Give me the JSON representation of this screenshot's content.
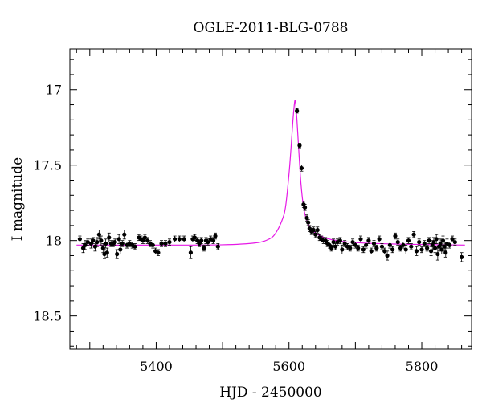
{
  "chart_data": {
    "type": "scatter",
    "title": "OGLE-2011-BLG-0788",
    "xlabel": "HJD - 2450000",
    "ylabel": "I magnitude",
    "xlim": [
      5270,
      5875
    ],
    "ylim": [
      18.72,
      16.73
    ],
    "y_inverted": true,
    "x_ticks": [
      5400,
      5600,
      5800
    ],
    "x_tick_labels": [
      "5400",
      "5600",
      "5800"
    ],
    "y_ticks": [
      17,
      17.5,
      18,
      18.5
    ],
    "y_tick_labels": [
      "17",
      "17.5",
      "18",
      "18.5"
    ],
    "grid": false,
    "legend": "none",
    "colors": {
      "points": "#000000",
      "model": "#e619e6",
      "frame": "#000000"
    },
    "model_curve": {
      "baseline": 18.03,
      "peak_magnitude": 17.07,
      "t0": 5609,
      "x": [
        5280,
        5400,
        5500,
        5550,
        5570,
        5580,
        5590,
        5595,
        5600,
        5603,
        5606,
        5608,
        5609,
        5610,
        5612,
        5615,
        5618,
        5622,
        5627,
        5633,
        5640,
        5650,
        5665,
        5690,
        5720,
        5760,
        5810,
        5865
      ],
      "y": [
        18.03,
        18.03,
        18.028,
        18.015,
        17.99,
        17.95,
        17.86,
        17.77,
        17.56,
        17.39,
        17.2,
        17.1,
        17.07,
        17.09,
        17.2,
        17.42,
        17.62,
        17.78,
        17.87,
        17.92,
        17.95,
        17.975,
        17.995,
        18.01,
        18.018,
        18.023,
        18.027,
        18.03
      ]
    },
    "points": [
      {
        "x": 5285,
        "y": 17.99,
        "err": 0.02
      },
      {
        "x": 5290,
        "y": 18.05,
        "err": 0.03
      },
      {
        "x": 5293,
        "y": 18.03,
        "err": 0.03
      },
      {
        "x": 5297,
        "y": 18.01,
        "err": 0.02
      },
      {
        "x": 5302,
        "y": 18.02,
        "err": 0.03
      },
      {
        "x": 5305,
        "y": 18.0,
        "err": 0.02
      },
      {
        "x": 5308,
        "y": 18.04,
        "err": 0.03
      },
      {
        "x": 5311,
        "y": 18.01,
        "err": 0.03
      },
      {
        "x": 5314,
        "y": 17.96,
        "err": 0.03
      },
      {
        "x": 5317,
        "y": 18.0,
        "err": 0.03
      },
      {
        "x": 5320,
        "y": 18.05,
        "err": 0.03
      },
      {
        "x": 5322,
        "y": 18.09,
        "err": 0.03
      },
      {
        "x": 5324,
        "y": 18.02,
        "err": 0.03
      },
      {
        "x": 5326,
        "y": 18.08,
        "err": 0.03
      },
      {
        "x": 5329,
        "y": 17.98,
        "err": 0.03
      },
      {
        "x": 5332,
        "y": 18.02,
        "err": 0.02
      },
      {
        "x": 5335,
        "y": 18.02,
        "err": 0.02
      },
      {
        "x": 5338,
        "y": 18.01,
        "err": 0.02
      },
      {
        "x": 5341,
        "y": 18.09,
        "err": 0.03
      },
      {
        "x": 5344,
        "y": 17.99,
        "err": 0.03
      },
      {
        "x": 5346,
        "y": 18.06,
        "err": 0.03
      },
      {
        "x": 5349,
        "y": 18.02,
        "err": 0.02
      },
      {
        "x": 5352,
        "y": 17.96,
        "err": 0.03
      },
      {
        "x": 5356,
        "y": 18.03,
        "err": 0.02
      },
      {
        "x": 5360,
        "y": 18.02,
        "err": 0.02
      },
      {
        "x": 5364,
        "y": 18.03,
        "err": 0.02
      },
      {
        "x": 5368,
        "y": 18.04,
        "err": 0.02
      },
      {
        "x": 5374,
        "y": 17.98,
        "err": 0.02
      },
      {
        "x": 5377,
        "y": 17.99,
        "err": 0.02
      },
      {
        "x": 5380,
        "y": 18.0,
        "err": 0.02
      },
      {
        "x": 5383,
        "y": 17.98,
        "err": 0.02
      },
      {
        "x": 5387,
        "y": 18.0,
        "err": 0.02
      },
      {
        "x": 5391,
        "y": 18.02,
        "err": 0.02
      },
      {
        "x": 5395,
        "y": 18.03,
        "err": 0.02
      },
      {
        "x": 5399,
        "y": 18.07,
        "err": 0.02
      },
      {
        "x": 5403,
        "y": 18.08,
        "err": 0.02
      },
      {
        "x": 5408,
        "y": 18.02,
        "err": 0.02
      },
      {
        "x": 5414,
        "y": 18.02,
        "err": 0.02
      },
      {
        "x": 5420,
        "y": 18.01,
        "err": 0.02
      },
      {
        "x": 5428,
        "y": 17.99,
        "err": 0.02
      },
      {
        "x": 5435,
        "y": 17.99,
        "err": 0.02
      },
      {
        "x": 5442,
        "y": 17.99,
        "err": 0.02
      },
      {
        "x": 5452,
        "y": 18.08,
        "err": 0.04
      },
      {
        "x": 5455,
        "y": 17.99,
        "err": 0.02
      },
      {
        "x": 5458,
        "y": 17.98,
        "err": 0.02
      },
      {
        "x": 5462,
        "y": 18.0,
        "err": 0.02
      },
      {
        "x": 5465,
        "y": 18.02,
        "err": 0.02
      },
      {
        "x": 5468,
        "y": 18.0,
        "err": 0.02
      },
      {
        "x": 5472,
        "y": 18.05,
        "err": 0.02
      },
      {
        "x": 5475,
        "y": 18.0,
        "err": 0.02
      },
      {
        "x": 5478,
        "y": 18.01,
        "err": 0.02
      },
      {
        "x": 5482,
        "y": 17.99,
        "err": 0.02
      },
      {
        "x": 5486,
        "y": 18.0,
        "err": 0.02
      },
      {
        "x": 5489,
        "y": 17.97,
        "err": 0.02
      },
      {
        "x": 5493,
        "y": 18.04,
        "err": 0.02
      },
      {
        "x": 5612,
        "y": 17.14,
        "err": 0.015
      },
      {
        "x": 5616,
        "y": 17.37,
        "err": 0.015
      },
      {
        "x": 5619,
        "y": 17.52,
        "err": 0.02
      },
      {
        "x": 5622,
        "y": 17.76,
        "err": 0.02
      },
      {
        "x": 5624,
        "y": 17.78,
        "err": 0.02
      },
      {
        "x": 5627,
        "y": 17.85,
        "err": 0.02
      },
      {
        "x": 5629,
        "y": 17.88,
        "err": 0.02
      },
      {
        "x": 5631,
        "y": 17.92,
        "err": 0.02
      },
      {
        "x": 5634,
        "y": 17.94,
        "err": 0.02
      },
      {
        "x": 5637,
        "y": 17.93,
        "err": 0.02
      },
      {
        "x": 5640,
        "y": 17.96,
        "err": 0.02
      },
      {
        "x": 5643,
        "y": 17.93,
        "err": 0.02
      },
      {
        "x": 5646,
        "y": 17.98,
        "err": 0.02
      },
      {
        "x": 5649,
        "y": 17.99,
        "err": 0.02
      },
      {
        "x": 5652,
        "y": 18.0,
        "err": 0.02
      },
      {
        "x": 5655,
        "y": 18.0,
        "err": 0.02
      },
      {
        "x": 5658,
        "y": 18.02,
        "err": 0.02
      },
      {
        "x": 5661,
        "y": 18.03,
        "err": 0.02
      },
      {
        "x": 5664,
        "y": 18.05,
        "err": 0.02
      },
      {
        "x": 5667,
        "y": 18.01,
        "err": 0.02
      },
      {
        "x": 5670,
        "y": 18.04,
        "err": 0.02
      },
      {
        "x": 5673,
        "y": 18.01,
        "err": 0.02
      },
      {
        "x": 5677,
        "y": 18.0,
        "err": 0.02
      },
      {
        "x": 5680,
        "y": 18.06,
        "err": 0.03
      },
      {
        "x": 5684,
        "y": 18.02,
        "err": 0.02
      },
      {
        "x": 5688,
        "y": 18.04,
        "err": 0.02
      },
      {
        "x": 5692,
        "y": 18.05,
        "err": 0.02
      },
      {
        "x": 5696,
        "y": 18.01,
        "err": 0.02
      },
      {
        "x": 5700,
        "y": 18.03,
        "err": 0.02
      },
      {
        "x": 5704,
        "y": 18.05,
        "err": 0.02
      },
      {
        "x": 5708,
        "y": 17.99,
        "err": 0.02
      },
      {
        "x": 5712,
        "y": 18.06,
        "err": 0.02
      },
      {
        "x": 5716,
        "y": 18.03,
        "err": 0.02
      },
      {
        "x": 5720,
        "y": 18.0,
        "err": 0.02
      },
      {
        "x": 5724,
        "y": 18.07,
        "err": 0.02
      },
      {
        "x": 5728,
        "y": 18.02,
        "err": 0.02
      },
      {
        "x": 5732,
        "y": 18.05,
        "err": 0.02
      },
      {
        "x": 5736,
        "y": 17.99,
        "err": 0.02
      },
      {
        "x": 5740,
        "y": 18.04,
        "err": 0.02
      },
      {
        "x": 5744,
        "y": 18.07,
        "err": 0.02
      },
      {
        "x": 5748,
        "y": 18.1,
        "err": 0.03
      },
      {
        "x": 5752,
        "y": 18.03,
        "err": 0.02
      },
      {
        "x": 5756,
        "y": 18.06,
        "err": 0.02
      },
      {
        "x": 5760,
        "y": 17.97,
        "err": 0.02
      },
      {
        "x": 5764,
        "y": 18.01,
        "err": 0.02
      },
      {
        "x": 5768,
        "y": 18.05,
        "err": 0.02
      },
      {
        "x": 5772,
        "y": 18.03,
        "err": 0.02
      },
      {
        "x": 5776,
        "y": 18.06,
        "err": 0.03
      },
      {
        "x": 5780,
        "y": 18.0,
        "err": 0.02
      },
      {
        "x": 5784,
        "y": 18.04,
        "err": 0.02
      },
      {
        "x": 5788,
        "y": 17.96,
        "err": 0.02
      },
      {
        "x": 5792,
        "y": 18.07,
        "err": 0.03
      },
      {
        "x": 5796,
        "y": 18.01,
        "err": 0.02
      },
      {
        "x": 5800,
        "y": 18.06,
        "err": 0.02
      },
      {
        "x": 5804,
        "y": 18.02,
        "err": 0.02
      },
      {
        "x": 5808,
        "y": 18.05,
        "err": 0.02
      },
      {
        "x": 5811,
        "y": 18.0,
        "err": 0.02
      },
      {
        "x": 5814,
        "y": 18.07,
        "err": 0.03
      },
      {
        "x": 5816,
        "y": 18.03,
        "err": 0.03
      },
      {
        "x": 5818,
        "y": 18.01,
        "err": 0.03
      },
      {
        "x": 5820,
        "y": 18.05,
        "err": 0.03
      },
      {
        "x": 5822,
        "y": 17.99,
        "err": 0.03
      },
      {
        "x": 5824,
        "y": 18.09,
        "err": 0.04
      },
      {
        "x": 5826,
        "y": 18.04,
        "err": 0.03
      },
      {
        "x": 5828,
        "y": 18.02,
        "err": 0.03
      },
      {
        "x": 5830,
        "y": 18.06,
        "err": 0.03
      },
      {
        "x": 5832,
        "y": 18.0,
        "err": 0.03
      },
      {
        "x": 5834,
        "y": 18.04,
        "err": 0.03
      },
      {
        "x": 5836,
        "y": 18.08,
        "err": 0.03
      },
      {
        "x": 5838,
        "y": 18.02,
        "err": 0.03
      },
      {
        "x": 5842,
        "y": 18.03,
        "err": 0.02
      },
      {
        "x": 5846,
        "y": 17.99,
        "err": 0.02
      },
      {
        "x": 5850,
        "y": 18.01,
        "err": 0.02
      },
      {
        "x": 5860,
        "y": 18.11,
        "err": 0.03
      }
    ]
  }
}
